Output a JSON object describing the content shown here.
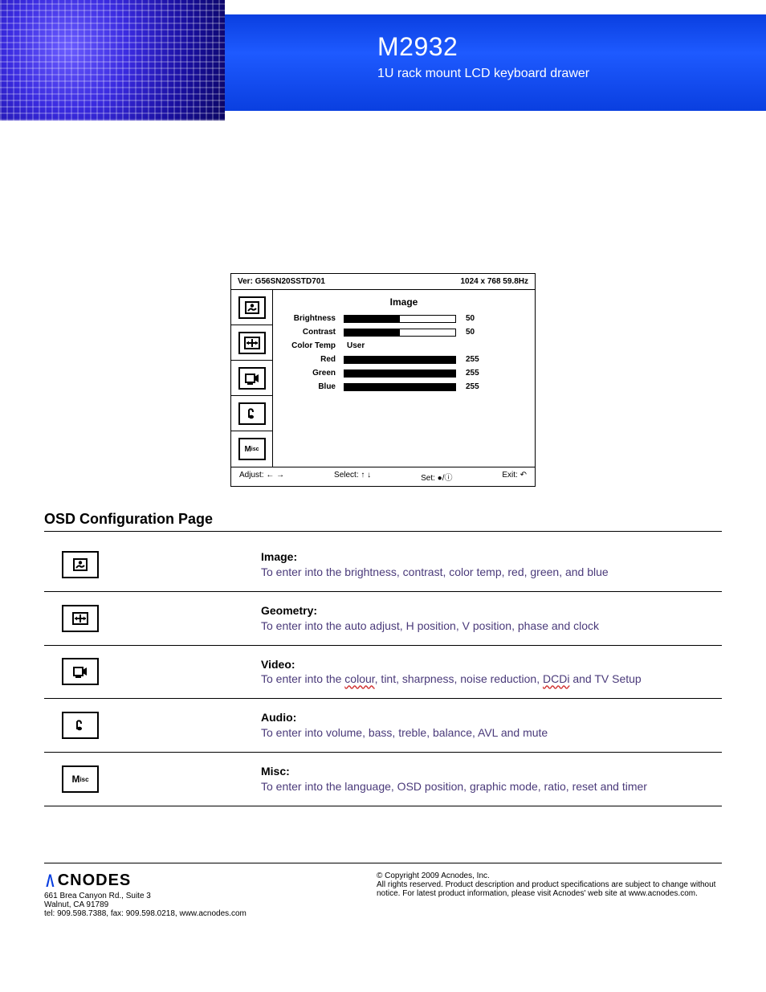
{
  "header": {
    "model": "M2932",
    "subtitle": "1U rack mount LCD keyboard drawer",
    "bar_color": "#0a3fe0",
    "photo_tint": "#3a2be0"
  },
  "osd": {
    "version_label": "Ver: G56SN20SSTD701",
    "mode_label": "1024 x 768  59.8Hz",
    "section_title": "Image",
    "tabs": [
      "image",
      "geometry",
      "video",
      "audio",
      "misc"
    ],
    "rows": [
      {
        "label": "Brightness",
        "type": "bar",
        "value": 50,
        "max": 100
      },
      {
        "label": "Contrast",
        "type": "bar",
        "value": 50,
        "max": 100
      },
      {
        "label": "Color Temp",
        "type": "text",
        "text": "User"
      },
      {
        "label": "Red",
        "type": "bar",
        "value": 255,
        "max": 255
      },
      {
        "label": "Green",
        "type": "bar",
        "value": 255,
        "max": 255
      },
      {
        "label": "Blue",
        "type": "bar",
        "value": 255,
        "max": 255
      }
    ],
    "footer": {
      "adjust": "Adjust: ← →",
      "select": "Select: ↑ ↓",
      "set": "Set: ●/ⓘ",
      "exit": "Exit: ↶"
    }
  },
  "section_title": "OSD Configuration Page",
  "cfg": [
    {
      "icon": "image",
      "title": "Image:",
      "desc": "To enter into the brightness, contrast, color temp, red, green, and blue"
    },
    {
      "icon": "geometry",
      "title": "Geometry:",
      "desc": "To enter into the auto adjust, H position, V position, phase and clock"
    },
    {
      "icon": "video",
      "title": "Video:",
      "desc_html": "To enter into the <span class='sq'>colour</span>, tint, sharpness, noise reduction, <span class='sq'>DCDi</span> and TV Setup"
    },
    {
      "icon": "audio",
      "title": "Audio:",
      "desc": "To enter into volume, bass, treble, balance, AVL and mute"
    },
    {
      "icon": "misc",
      "title": "Misc:",
      "desc": "To enter into the language, OSD position, graphic mode, ratio, reset and timer"
    }
  ],
  "footer": {
    "logo_text": "CNODES",
    "addr1": "661 Brea Canyon Rd., Suite 3",
    "addr2": "Walnut, CA 91789",
    "addr3": "tel: 909.598.7388, fax: 909.598.0218, www.acnodes.com",
    "copy1": "© Copyright 2009 Acnodes, Inc.",
    "copy2": "All rights reserved. Product description and product specifications are subject to change without notice. For latest product information, please visit Acnodes' web site at www.acnodes.com."
  }
}
